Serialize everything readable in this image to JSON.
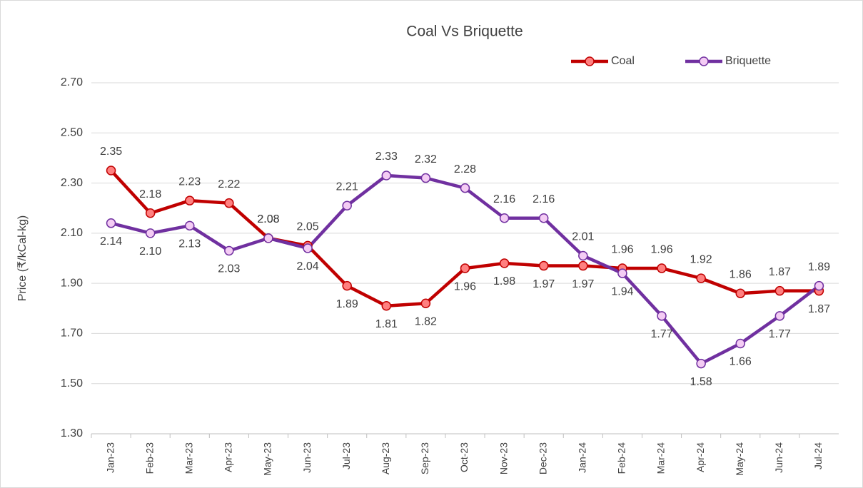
{
  "chart_data": {
    "type": "line",
    "title": "Coal Vs Briquette",
    "y_label": "Price (₹/kCal-kg)",
    "categories": [
      "Jan-23",
      "Feb-23",
      "Mar-23",
      "Apr-23",
      "May-23",
      "Jun-23",
      "Jul-23",
      "Aug-23",
      "Sep-23",
      "Oct-23",
      "Nov-23",
      "Dec-23",
      "Jan-24",
      "Feb-24",
      "Mar-24",
      "Apr-24",
      "May-24",
      "Jun-24",
      "Jul-24"
    ],
    "series": [
      {
        "name": "Coal",
        "color": "#c00000",
        "marker_fill": "#ff8080",
        "values": [
          2.35,
          2.18,
          2.23,
          2.22,
          2.08,
          2.05,
          1.89,
          1.81,
          1.82,
          1.96,
          1.98,
          1.97,
          1.97,
          1.96,
          1.96,
          1.92,
          1.86,
          1.87,
          1.87
        ],
        "value_labels": [
          "2.35",
          "2.18",
          "2.23",
          "2.22",
          "2.08",
          "2.05",
          "1.89",
          "1.81",
          "1.82",
          "1.96",
          "1.98",
          "1.97",
          "1.97",
          "1.96",
          "1.96",
          "1.92",
          "1.86",
          "1.87",
          "1.87"
        ]
      },
      {
        "name": "Briquette",
        "color": "#7030a0",
        "marker_fill": "#f4ccf4",
        "values": [
          2.14,
          2.1,
          2.13,
          2.03,
          2.08,
          2.04,
          2.21,
          2.33,
          2.32,
          2.28,
          2.16,
          2.16,
          2.01,
          1.94,
          1.77,
          1.58,
          1.66,
          1.77,
          1.89
        ],
        "value_labels": [
          "2.14",
          "2.10",
          "2.13",
          "2.03",
          "2.08",
          "2.04",
          "2.21",
          "2.33",
          "2.32",
          "2.28",
          "2.16",
          "2.16",
          "2.01",
          "1.94",
          "1.77",
          "1.58",
          "1.66",
          "1.77",
          "1.89"
        ]
      }
    ],
    "ylim": [
      1.3,
      2.7
    ],
    "yticks": [
      {
        "value": 1.3,
        "label": "1.30"
      },
      {
        "value": 1.5,
        "label": "1.50"
      },
      {
        "value": 1.7,
        "label": "1.70"
      },
      {
        "value": 1.9,
        "label": "1.90"
      },
      {
        "value": 2.1,
        "label": "2.10"
      },
      {
        "value": 2.3,
        "label": "2.30"
      },
      {
        "value": 2.5,
        "label": "2.50"
      },
      {
        "value": 2.7,
        "label": "2.70"
      }
    ],
    "grid": true,
    "legend": "top-right"
  }
}
